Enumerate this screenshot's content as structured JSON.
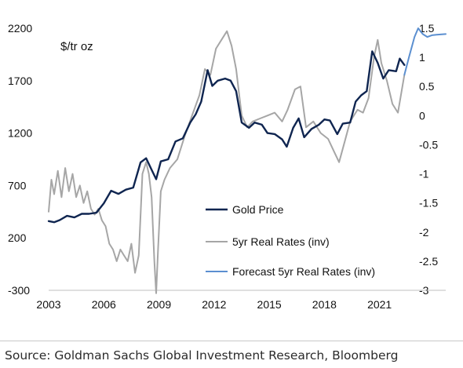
{
  "chart_data": {
    "type": "line",
    "unit_label": "$/tr oz",
    "x_ticks": [
      "2003",
      "2006",
      "2009",
      "2012",
      "2015",
      "2018",
      "2021"
    ],
    "y_left_ticks": [
      "2200",
      "1700",
      "1200",
      "700",
      "200",
      "-300"
    ],
    "y_right_ticks": [
      "1.5",
      "1",
      "0.5",
      "0",
      "-0.5",
      "-1",
      "-1.5",
      "-2",
      "-2.5",
      "-3"
    ],
    "x_range": [
      2003,
      2024.6
    ],
    "y_left_range": [
      -300,
      2200
    ],
    "y_right_range": [
      -3,
      1.5
    ],
    "legend_position": "bottom-right",
    "series": [
      {
        "name": "Gold Price",
        "axis": "left",
        "color": "#0f2550",
        "points": [
          [
            2003.0,
            360
          ],
          [
            2003.3,
            350
          ],
          [
            2003.6,
            370
          ],
          [
            2004.0,
            410
          ],
          [
            2004.4,
            395
          ],
          [
            2004.8,
            430
          ],
          [
            2005.2,
            430
          ],
          [
            2005.6,
            440
          ],
          [
            2006.0,
            530
          ],
          [
            2006.4,
            650
          ],
          [
            2006.8,
            620
          ],
          [
            2007.2,
            660
          ],
          [
            2007.6,
            680
          ],
          [
            2008.0,
            920
          ],
          [
            2008.3,
            960
          ],
          [
            2008.6,
            850
          ],
          [
            2008.85,
            760
          ],
          [
            2009.1,
            930
          ],
          [
            2009.5,
            950
          ],
          [
            2009.9,
            1120
          ],
          [
            2010.3,
            1150
          ],
          [
            2010.7,
            1300
          ],
          [
            2011.0,
            1380
          ],
          [
            2011.3,
            1500
          ],
          [
            2011.65,
            1800
          ],
          [
            2011.9,
            1650
          ],
          [
            2012.2,
            1700
          ],
          [
            2012.6,
            1720
          ],
          [
            2012.9,
            1700
          ],
          [
            2013.2,
            1600
          ],
          [
            2013.5,
            1300
          ],
          [
            2013.9,
            1250
          ],
          [
            2014.2,
            1300
          ],
          [
            2014.6,
            1280
          ],
          [
            2014.9,
            1200
          ],
          [
            2015.3,
            1190
          ],
          [
            2015.7,
            1140
          ],
          [
            2015.95,
            1070
          ],
          [
            2016.3,
            1250
          ],
          [
            2016.6,
            1340
          ],
          [
            2016.9,
            1160
          ],
          [
            2017.3,
            1240
          ],
          [
            2017.7,
            1280
          ],
          [
            2018.0,
            1330
          ],
          [
            2018.3,
            1320
          ],
          [
            2018.7,
            1190
          ],
          [
            2019.0,
            1290
          ],
          [
            2019.4,
            1300
          ],
          [
            2019.7,
            1500
          ],
          [
            2020.0,
            1560
          ],
          [
            2020.3,
            1600
          ],
          [
            2020.6,
            1980
          ],
          [
            2020.9,
            1870
          ],
          [
            2021.2,
            1720
          ],
          [
            2021.5,
            1800
          ],
          [
            2021.9,
            1790
          ],
          [
            2022.1,
            1910
          ],
          [
            2022.35,
            1850
          ]
        ]
      },
      {
        "name": "5yr Real Rates (inv)",
        "axis": "right",
        "color": "#a6a6a6",
        "points": [
          [
            2003.0,
            -1.65
          ],
          [
            2003.15,
            -1.1
          ],
          [
            2003.3,
            -1.35
          ],
          [
            2003.5,
            -0.95
          ],
          [
            2003.7,
            -1.4
          ],
          [
            2003.9,
            -0.9
          ],
          [
            2004.1,
            -1.3
          ],
          [
            2004.3,
            -1.0
          ],
          [
            2004.5,
            -1.4
          ],
          [
            2004.7,
            -1.2
          ],
          [
            2004.9,
            -1.5
          ],
          [
            2005.1,
            -1.3
          ],
          [
            2005.3,
            -1.6
          ],
          [
            2005.5,
            -1.7
          ],
          [
            2005.7,
            -1.6
          ],
          [
            2005.9,
            -1.8
          ],
          [
            2006.1,
            -1.9
          ],
          [
            2006.3,
            -2.2
          ],
          [
            2006.5,
            -2.3
          ],
          [
            2006.7,
            -2.5
          ],
          [
            2006.9,
            -2.3
          ],
          [
            2007.1,
            -2.4
          ],
          [
            2007.3,
            -2.5
          ],
          [
            2007.5,
            -2.2
          ],
          [
            2007.7,
            -2.7
          ],
          [
            2007.9,
            -2.4
          ],
          [
            2008.1,
            -1.0
          ],
          [
            2008.3,
            -0.8
          ],
          [
            2008.45,
            -1.0
          ],
          [
            2008.6,
            -1.4
          ],
          [
            2008.75,
            -2.5
          ],
          [
            2008.85,
            -3.05
          ],
          [
            2008.95,
            -2.3
          ],
          [
            2009.1,
            -1.3
          ],
          [
            2009.3,
            -1.1
          ],
          [
            2009.6,
            -0.9
          ],
          [
            2010.0,
            -0.75
          ],
          [
            2010.4,
            -0.35
          ],
          [
            2010.8,
            0.0
          ],
          [
            2011.2,
            0.35
          ],
          [
            2011.5,
            0.8
          ],
          [
            2011.8,
            0.7
          ],
          [
            2012.1,
            1.15
          ],
          [
            2012.4,
            1.3
          ],
          [
            2012.7,
            1.45
          ],
          [
            2012.95,
            1.2
          ],
          [
            2013.2,
            0.8
          ],
          [
            2013.5,
            0.0
          ],
          [
            2013.8,
            -0.2
          ],
          [
            2014.1,
            -0.1
          ],
          [
            2014.5,
            -0.05
          ],
          [
            2014.9,
            0.0
          ],
          [
            2015.3,
            0.05
          ],
          [
            2015.7,
            -0.1
          ],
          [
            2016.0,
            0.1
          ],
          [
            2016.4,
            0.45
          ],
          [
            2016.7,
            0.5
          ],
          [
            2017.0,
            -0.2
          ],
          [
            2017.4,
            -0.1
          ],
          [
            2017.8,
            -0.3
          ],
          [
            2018.2,
            -0.4
          ],
          [
            2018.5,
            -0.6
          ],
          [
            2018.8,
            -0.8
          ],
          [
            2019.1,
            -0.45
          ],
          [
            2019.4,
            -0.1
          ],
          [
            2019.8,
            0.1
          ],
          [
            2020.1,
            0.05
          ],
          [
            2020.4,
            0.3
          ],
          [
            2020.7,
            1.0
          ],
          [
            2020.9,
            1.3
          ],
          [
            2021.1,
            0.9
          ],
          [
            2021.4,
            0.6
          ],
          [
            2021.7,
            0.2
          ],
          [
            2022.0,
            0.05
          ],
          [
            2022.35,
            0.7
          ]
        ]
      },
      {
        "name": "Forecast 5yr Real Rates (inv)",
        "axis": "right",
        "color": "#5b8fd0",
        "points": [
          [
            2022.35,
            0.7
          ],
          [
            2022.6,
            1.0
          ],
          [
            2022.9,
            1.35
          ],
          [
            2023.1,
            1.5
          ],
          [
            2023.35,
            1.4
          ],
          [
            2023.6,
            1.35
          ],
          [
            2023.85,
            1.38
          ],
          [
            2024.1,
            1.39
          ],
          [
            2024.6,
            1.4
          ]
        ]
      }
    ]
  },
  "footer": {
    "source": "Source: Goldman Sachs Global Investment Research, Bloomberg"
  }
}
